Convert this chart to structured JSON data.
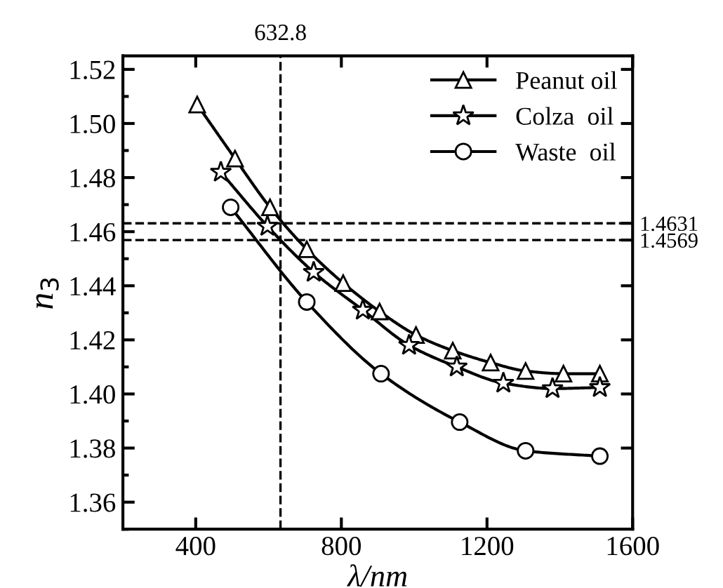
{
  "chart_data": {
    "type": "line",
    "xlabel": "λ/nm",
    "ylabel": "n$_{3}$",
    "series": [
      {
        "name": "Peanut oil",
        "color": "#000000",
        "marker": "triangle",
        "x": [
          404,
          508,
          604,
          705,
          805,
          905,
          1005,
          1106,
          1210,
          1306,
          1410,
          1510
        ],
        "values": [
          1.507,
          1.487,
          1.469,
          1.4535,
          1.441,
          1.4305,
          1.4218,
          1.416,
          1.4116,
          1.4085,
          1.4075,
          1.4075
        ]
      },
      {
        "name": "Colza  oil",
        "color": "#000000",
        "marker": "star",
        "x": [
          469,
          597,
          724,
          859,
          986,
          1117,
          1245,
          1380,
          1510
        ],
        "values": [
          1.482,
          1.462,
          1.445,
          1.431,
          1.418,
          1.41,
          1.404,
          1.402,
          1.4024
        ]
      },
      {
        "name": "Waste  oil",
        "color": "#000000",
        "marker": "circle",
        "x": [
          496,
          705,
          909,
          1125,
          1306,
          1510
        ],
        "values": [
          1.469,
          1.434,
          1.4075,
          1.3896,
          1.379,
          1.377
        ]
      }
    ],
    "xlim": [
      200,
      1600
    ],
    "xticks": [
      400,
      800,
      1200,
      1600
    ],
    "ylim": [
      1.35,
      1.525
    ],
    "yticks": [
      1.36,
      1.38,
      {
        "value": 1.4,
        "label": "1.40"
      },
      1.42,
      1.44,
      1.46,
      1.48,
      {
        "value": 1.5,
        "label": "1.50"
      },
      1.52
    ],
    "y2lim": [
      1.35,
      1.525
    ],
    "y2ticks": [
      {
        "value": 1.38,
        "label": null
      },
      {
        "value": 1.4,
        "label": null
      },
      {
        "value": 1.42,
        "label": null
      },
      {
        "value": 1.44,
        "label": null
      },
      {
        "value": 1.4569,
        "label": "1.4569"
      },
      {
        "value": 1.4631,
        "label": "1.4631"
      },
      {
        "value": 1.48,
        "label": null
      },
      {
        "value": 1.5,
        "label": null
      },
      {
        "value": 1.52,
        "label": null
      }
    ],
    "ref_lines": [
      {
        "axis": "x",
        "value": 632.8,
        "label": "632.8",
        "line_style": "dashed",
        "color": "#000000"
      },
      {
        "axis": "y",
        "value": 1.4631,
        "line_style": "dashed",
        "color": "#000000"
      },
      {
        "axis": "y",
        "value": 1.4569,
        "line_style": "dashed",
        "color": "#000000"
      }
    ],
    "legend": "top right",
    "grid": false,
    "line_style": "solid"
  }
}
